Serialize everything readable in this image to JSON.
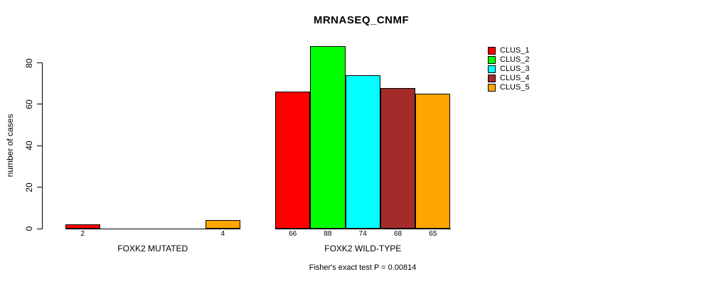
{
  "chart_data": {
    "type": "bar",
    "title": "MRNASEQ_CNMF",
    "ylabel": "number of cases",
    "footnote": "Fisher's exact test P = 0.00814",
    "yticks": [
      0,
      20,
      40,
      60,
      80
    ],
    "ylim": [
      0,
      88
    ],
    "grid": false,
    "legend_position": "top-right",
    "legend": [
      {
        "label": "CLUS_1",
        "color": "#FF0000"
      },
      {
        "label": "CLUS_2",
        "color": "#00FF00"
      },
      {
        "label": "CLUS_3",
        "color": "#00FFFF"
      },
      {
        "label": "CLUS_4",
        "color": "#A52A2A"
      },
      {
        "label": "CLUS_5",
        "color": "#FFA500"
      }
    ],
    "series_colors": [
      "#FF0000",
      "#00FF00",
      "#00FFFF",
      "#A52A2A",
      "#FFA500"
    ],
    "groups": [
      {
        "label": "FOXK2 MUTATED",
        "values": [
          2,
          0,
          0,
          0,
          4
        ],
        "bar_labels": [
          "2",
          "",
          "",
          "",
          "4"
        ]
      },
      {
        "label": "FOXK2 WILD-TYPE",
        "values": [
          66,
          88,
          74,
          68,
          65
        ],
        "bar_labels": [
          "66",
          "88",
          "74",
          "68",
          "65"
        ]
      }
    ],
    "series": [
      {
        "name": "CLUS_1",
        "values": [
          2,
          66
        ]
      },
      {
        "name": "CLUS_2",
        "values": [
          0,
          88
        ]
      },
      {
        "name": "CLUS_3",
        "values": [
          0,
          74
        ]
      },
      {
        "name": "CLUS_4",
        "values": [
          0,
          68
        ]
      },
      {
        "name": "CLUS_5",
        "values": [
          4,
          65
        ]
      }
    ]
  }
}
